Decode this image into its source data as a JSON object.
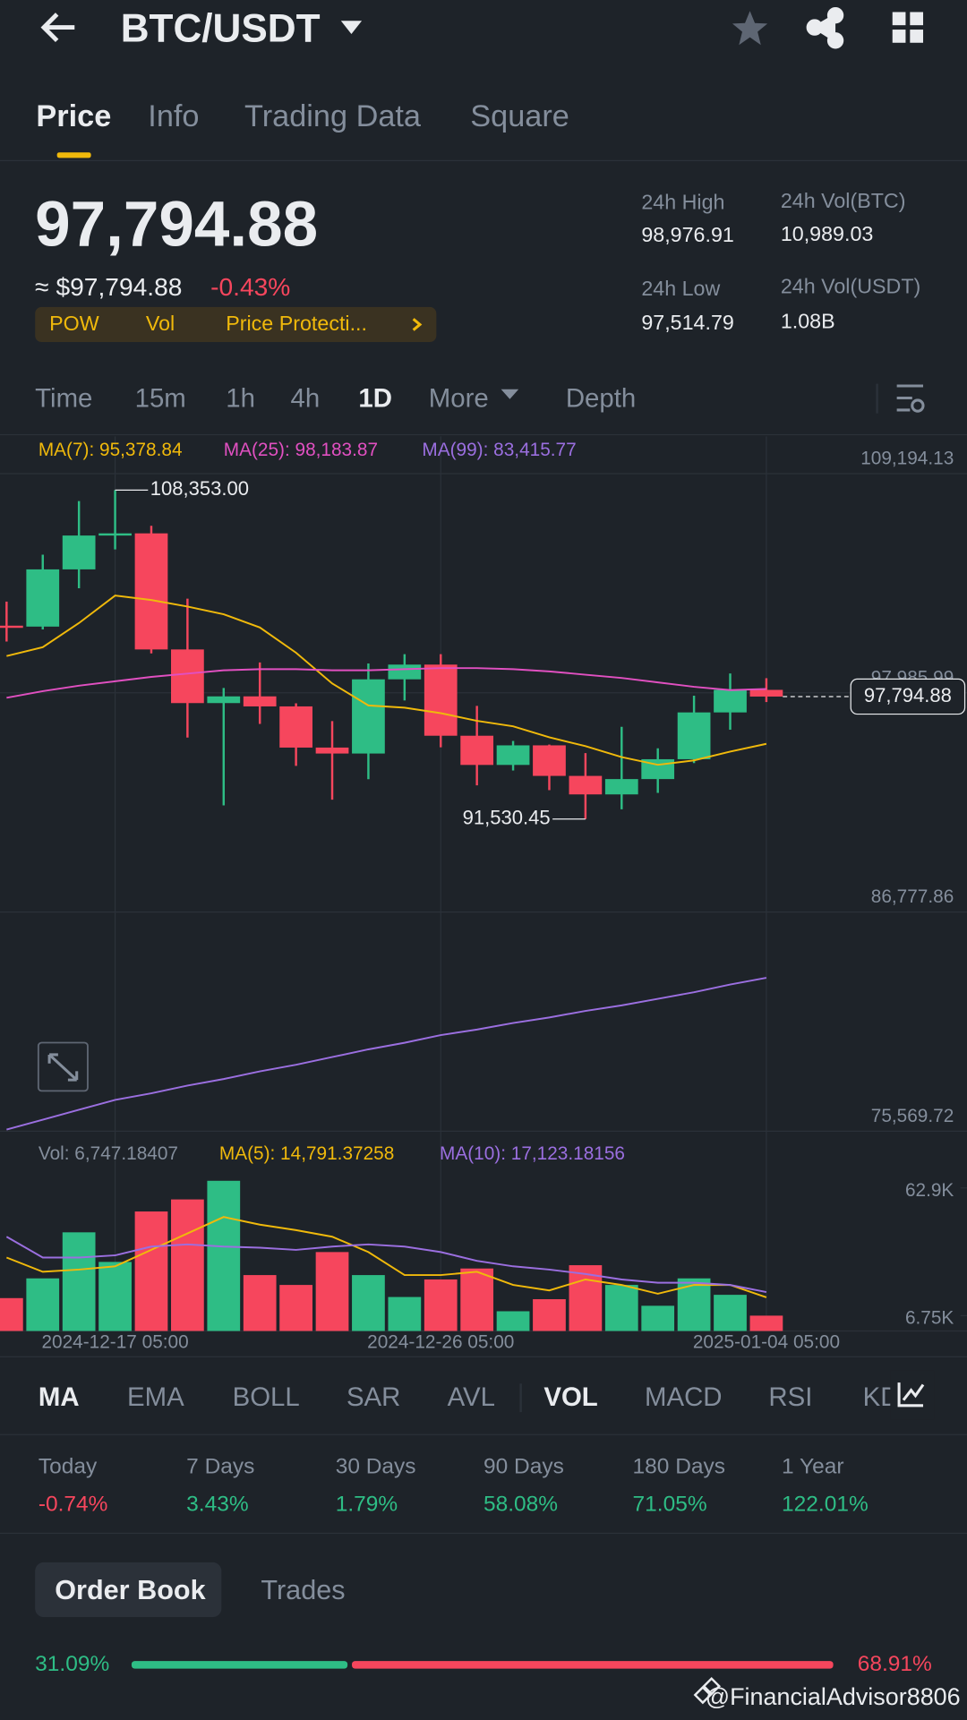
{
  "header": {
    "title": "BTC/USDT"
  },
  "tabs": [
    "Price",
    "Info",
    "Trading Data",
    "Square"
  ],
  "price": {
    "last": "97,794.88",
    "approx": "≈ $97,794.88",
    "change": "-0.43%"
  },
  "tags": [
    "POW",
    "Vol",
    "Price Protecti..."
  ],
  "stats": [
    {
      "label": "24h High",
      "value": "98,976.91"
    },
    {
      "label": "24h Vol(BTC)",
      "value": "10,989.03"
    },
    {
      "label": "24h Low",
      "value": "97,514.79"
    },
    {
      "label": "24h Vol(USDT)",
      "value": "1.08B"
    }
  ],
  "intervals": [
    "Time",
    "15m",
    "1h",
    "4h",
    "1D",
    "More",
    "Depth"
  ],
  "chart_data": [
    {
      "type": "candlestick",
      "open": [
        101420,
        101372,
        104298,
        106030,
        106140,
        100204,
        97461,
        97805,
        97292,
        95187,
        94882,
        98676,
        99429,
        95792,
        94299,
        95300,
        93738,
        92792,
        93576,
        94592,
        96984,
        98137
      ],
      "high": [
        102650,
        105047,
        107793,
        108353,
        106524,
        102800,
        98233,
        99540,
        97448,
        96539,
        99487,
        99963,
        99963,
        97320,
        95525,
        95340,
        94903,
        96250,
        95149,
        97839,
        98976,
        98734
      ],
      "low": [
        100609,
        101227,
        103333,
        105321,
        100000,
        95700,
        92232,
        96398,
        94250,
        92520,
        93568,
        97596,
        95200,
        93253,
        94014,
        93010,
        91530.45,
        92033,
        92870,
        94392,
        96100,
        97514.79
      ],
      "close": [
        101372,
        104298,
        106029,
        106140,
        100204,
        97461,
        97805,
        97291,
        95186,
        94882,
        98676,
        99429,
        95792,
        94299,
        95300,
        93738,
        92792,
        93576,
        94591,
        96984,
        98137,
        97794.88
      ],
      "up_color": "#2ebd85",
      "down_color": "#f6465d",
      "series": [
        {
          "name": "MA(7): 95,378.84",
          "color": "#f0b90b",
          "values": [
            99868,
            100318,
            101554,
            102958,
            102733,
            102396,
            102003,
            101329,
            100037,
            98464,
            97340,
            97228,
            96947,
            96554,
            96273,
            95711,
            95261,
            94700,
            94306,
            94531,
            94980,
            95378.84
          ]
        },
        {
          "name": "MA(25): 98,183.87",
          "color": "#e150c1",
          "values": [
            97733,
            98070,
            98351,
            98576,
            98801,
            98969,
            99138,
            99194,
            99194,
            99138,
            99138,
            99194,
            99250,
            99250,
            99194,
            99082,
            98913,
            98745,
            98520,
            98295,
            98127,
            98183.87
          ]
        },
        {
          "name": "MA(99): 83,415.77",
          "color": "#9b6fe0",
          "values": [
            75655,
            76160,
            76666,
            77171,
            77508,
            77902,
            78239,
            78632,
            78969,
            79362,
            79756,
            80093,
            80486,
            80767,
            81104,
            81385,
            81722,
            82003,
            82340,
            82677,
            83070,
            83415.77
          ]
        }
      ],
      "ylim": [
        75300,
        111100
      ],
      "yticks": [
        {
          "value": 75569.72,
          "label": "75,569.72"
        },
        {
          "value": 86777.86,
          "label": "86,777.86"
        },
        {
          "value": 97985.99,
          "label": "97,985.99"
        },
        {
          "value": 109194.13,
          "label": "109,194.13"
        }
      ],
      "high_label": "108,353.00",
      "low_label": "91,530.45",
      "last_label": "97,794.88"
    },
    {
      "type": "bar",
      "name": "Vol: 6,747.18407",
      "categories": [
        null,
        null,
        null,
        "2024-12-17 05:00",
        null,
        null,
        null,
        null,
        null,
        null,
        null,
        null,
        "2024-12-26 05:00",
        null,
        null,
        null,
        null,
        null,
        null,
        null,
        null,
        "2025-01-04 05:00"
      ],
      "values": [
        14460,
        23136,
        43380,
        30366,
        52538,
        57840,
        66034,
        24582,
        20244,
        34704,
        24582,
        14942,
        22654,
        27474,
        8676,
        13978,
        28920,
        20244,
        11086,
        23136,
        15906,
        6747.18407
      ],
      "colors": [
        "#f6465d",
        "#2ebd85",
        "#2ebd85",
        "#2ebd85",
        "#f6465d",
        "#f6465d",
        "#2ebd85",
        "#f6465d",
        "#f6465d",
        "#f6465d",
        "#2ebd85",
        "#2ebd85",
        "#f6465d",
        "#f6465d",
        "#2ebd85",
        "#f6465d",
        "#f6465d",
        "#2ebd85",
        "#2ebd85",
        "#2ebd85",
        "#2ebd85",
        "#f6465d"
      ],
      "series": [
        {
          "name": "MA(5): 14,791.37258",
          "color": "#f0b90b",
          "values": [
            32294,
            26028,
            26992,
            28438,
            35668,
            42898,
            50128,
            46754,
            44344,
            41452,
            34704,
            24582,
            24582,
            26028,
            20244,
            17834,
            22654,
            20244,
            16388,
            20244,
            20244,
            14791.37258
          ]
        },
        {
          "name": "MA(10): 17,123.18156",
          "color": "#9b6fe0",
          "values": [
            41452,
            32294,
            32294,
            33258,
            37114,
            38078,
            37114,
            36632,
            35668,
            37114,
            38078,
            37114,
            34704,
            30848,
            28438,
            26992,
            25064,
            22654,
            21208,
            21208,
            20244,
            17123.18156
          ]
        }
      ],
      "ylim": [
        0,
        84000
      ],
      "yticks": [
        {
          "value": 6750,
          "label": "6.75K"
        },
        {
          "value": 62900,
          "label": "62.9K"
        }
      ]
    }
  ],
  "indicators": [
    "MA",
    "EMA",
    "BOLL",
    "SAR",
    "AVL",
    "VOL",
    "MACD",
    "RSI",
    "KD"
  ],
  "performance": [
    {
      "period": "Today",
      "change": "-0.74%"
    },
    {
      "period": "7 Days",
      "change": "3.43%"
    },
    {
      "period": "30 Days",
      "change": "1.79%"
    },
    {
      "period": "90 Days",
      "change": "58.08%"
    },
    {
      "period": "180 Days",
      "change": "71.05%"
    },
    {
      "period": "1 Year",
      "change": "122.01%"
    }
  ],
  "order_book": {
    "tabs": [
      "Order Book",
      "Trades"
    ],
    "bid": {
      "value": 31.09,
      "label": "31.09%"
    },
    "ask": {
      "value": 68.91,
      "label": "68.91%"
    }
  },
  "watermark": "@FinancialAdvisor8806"
}
